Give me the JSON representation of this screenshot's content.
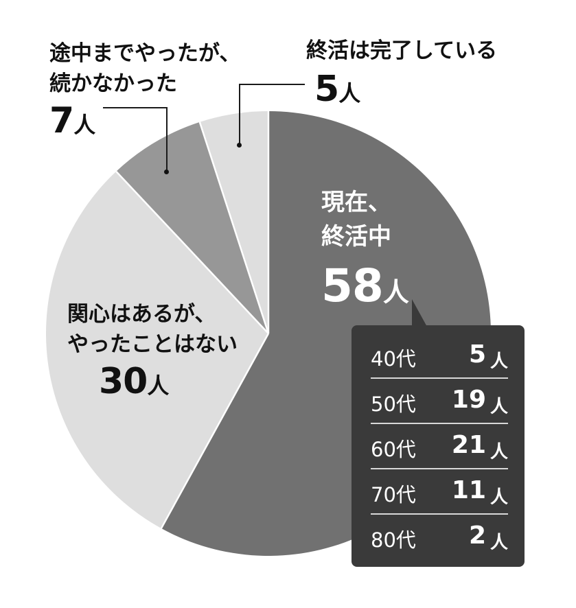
{
  "chart_data": {
    "type": "pie",
    "total": 100,
    "slices": [
      {
        "label_lines": [
          "現在、",
          "終活中"
        ],
        "value": 58,
        "unit": "人",
        "color": "#717171"
      },
      {
        "label_lines": [
          "関心はあるが、",
          "やったことはない"
        ],
        "value": 30,
        "unit": "人",
        "color": "#dedede"
      },
      {
        "label_lines": [
          "途中までやったが、",
          "続かなかった"
        ],
        "value": 7,
        "unit": "人",
        "color": "#979797"
      },
      {
        "label_lines": [
          "終活は完了している"
        ],
        "value": 5,
        "unit": "人",
        "color": "#dedede"
      }
    ],
    "breakdown": {
      "parent": "現在、終活中",
      "rows": [
        {
          "age": "40代",
          "value": 5,
          "unit": "人"
        },
        {
          "age": "50代",
          "value": 19,
          "unit": "人"
        },
        {
          "age": "60代",
          "value": 21,
          "unit": "人"
        },
        {
          "age": "70代",
          "value": 11,
          "unit": "人"
        },
        {
          "age": "80代",
          "value": 2,
          "unit": "人"
        }
      ]
    }
  }
}
